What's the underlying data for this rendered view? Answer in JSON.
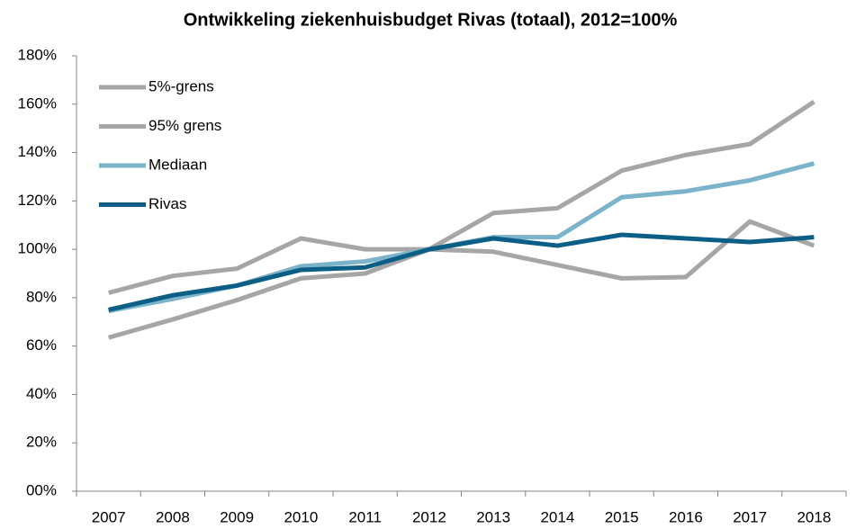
{
  "chart_data": {
    "type": "line",
    "title": "Ontwikkeling ziekenhuisbudget Rivas (totaal), 2012=100%",
    "categories": [
      "2007",
      "2008",
      "2009",
      "2010",
      "2011",
      "2012",
      "2013",
      "2014",
      "2015",
      "2016",
      "2017",
      "2018"
    ],
    "series": [
      {
        "name": "5%-grens",
        "color": "#a6a6a6",
        "values": [
          82,
          89,
          92,
          104.5,
          100,
          100,
          99,
          93.5,
          88,
          88.5,
          111.5,
          101.5
        ]
      },
      {
        "name": "95% grens",
        "color": "#a6a6a6",
        "values": [
          63.5,
          71,
          79,
          88,
          90,
          100,
          115,
          117,
          132.5,
          139,
          143.5,
          161
        ]
      },
      {
        "name": "Mediaan",
        "color": "#7ab3ca",
        "values": [
          74.5,
          79.5,
          85,
          93,
          95,
          100,
          105,
          105,
          121.5,
          124,
          128.5,
          135.5
        ]
      },
      {
        "name": "Rivas",
        "color": "#0b5f86",
        "values": [
          75,
          81,
          85,
          91.5,
          92.5,
          100,
          104.5,
          101.5,
          106,
          104.5,
          103,
          105
        ]
      }
    ],
    "ylim": [
      0,
      180
    ],
    "yticks": [
      {
        "value": 0,
        "label": "00%"
      },
      {
        "value": 20,
        "label": "20%"
      },
      {
        "value": 40,
        "label": "40%"
      },
      {
        "value": 60,
        "label": "60%"
      },
      {
        "value": 80,
        "label": "80%"
      },
      {
        "value": 100,
        "label": "100%"
      },
      {
        "value": 120,
        "label": "120%"
      },
      {
        "value": 140,
        "label": "140%"
      },
      {
        "value": 160,
        "label": "160%"
      },
      {
        "value": 180,
        "label": "180%"
      }
    ],
    "grid": false,
    "legend": "top-left"
  }
}
